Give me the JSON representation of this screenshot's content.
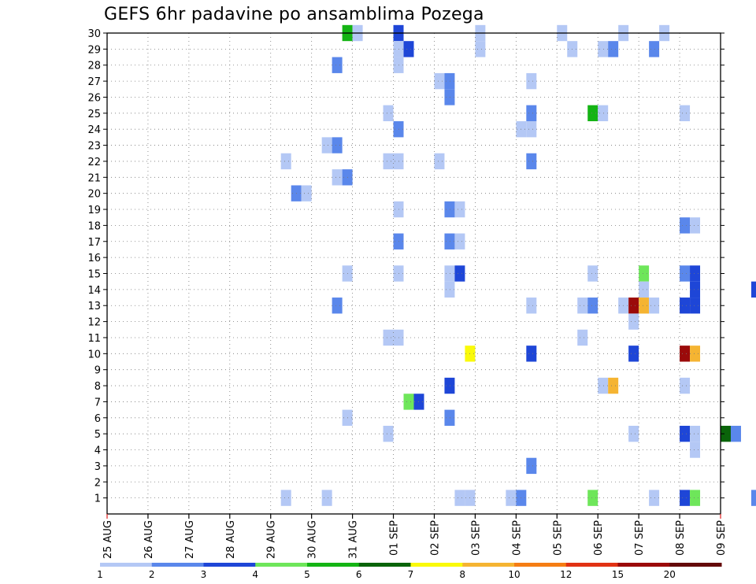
{
  "chart_data": {
    "type": "heatmap",
    "title": "GEFS 6hr padavine po ansamblima Pozega",
    "x_tick_labels": [
      "25 AUG",
      "26 AUG",
      "27 AUG",
      "28 AUG",
      "29 AUG",
      "30 AUG",
      "31 AUG",
      "01 SEP",
      "02 SEP",
      "03 SEP",
      "04 SEP",
      "05 SEP",
      "06 SEP",
      "07 SEP",
      "08 SEP",
      "09 SEP"
    ],
    "y_tick_labels": [
      "1",
      "2",
      "3",
      "4",
      "5",
      "6",
      "7",
      "8",
      "9",
      "10",
      "11",
      "12",
      "13",
      "14",
      "15",
      "16",
      "17",
      "18",
      "19",
      "20",
      "21",
      "22",
      "23",
      "24",
      "25",
      "26",
      "27",
      "28",
      "29",
      "30"
    ],
    "x_unit": "6hr step (4 per day, starting 25 AUG)",
    "ylim": [
      0,
      30
    ],
    "grid": true,
    "colorbar": {
      "levels": [
        "1",
        "2",
        "3",
        "4",
        "5",
        "6",
        "7",
        "8",
        "10",
        "12",
        "15",
        "20"
      ],
      "colors": [
        "#b4c8f5",
        "#5a87eb",
        "#1e46d7",
        "#6ee65a",
        "#14b414",
        "#0a640a",
        "#fafa0a",
        "#f5b432",
        "#f57d14",
        "#e13214",
        "#9b0a0a",
        "#640a0a"
      ]
    },
    "cells": [
      [
        30,
        23,
        4
      ],
      [
        30,
        24,
        0
      ],
      [
        30,
        28,
        2
      ],
      [
        30,
        36,
        0
      ],
      [
        30,
        44,
        0
      ],
      [
        30,
        50,
        0
      ],
      [
        30,
        54,
        0
      ],
      [
        30,
        72,
        0
      ],
      [
        29,
        28,
        0
      ],
      [
        29,
        29,
        2
      ],
      [
        29,
        36,
        0
      ],
      [
        29,
        45,
        0
      ],
      [
        29,
        48,
        0
      ],
      [
        29,
        49,
        1
      ],
      [
        29,
        53,
        1
      ],
      [
        29,
        83,
        0
      ],
      [
        28,
        22,
        1
      ],
      [
        28,
        28,
        0
      ],
      [
        28,
        78,
        0
      ],
      [
        28,
        82,
        1
      ],
      [
        28,
        83,
        0
      ],
      [
        28,
        84,
        1
      ],
      [
        28,
        85,
        5
      ],
      [
        28,
        88,
        1
      ],
      [
        27,
        32,
        0
      ],
      [
        27,
        33,
        1
      ],
      [
        27,
        41,
        0
      ],
      [
        27,
        83,
        0
      ],
      [
        27,
        88,
        0
      ],
      [
        26,
        33,
        1
      ],
      [
        25,
        27,
        0
      ],
      [
        25,
        41,
        1
      ],
      [
        25,
        47,
        4
      ],
      [
        25,
        48,
        0
      ],
      [
        25,
        56,
        0
      ],
      [
        24,
        28,
        1
      ],
      [
        24,
        40,
        0
      ],
      [
        24,
        41,
        0
      ],
      [
        23,
        21,
        0
      ],
      [
        23,
        22,
        1
      ],
      [
        22,
        17,
        0
      ],
      [
        22,
        27,
        0
      ],
      [
        22,
        28,
        0
      ],
      [
        22,
        32,
        0
      ],
      [
        22,
        41,
        1
      ],
      [
        21,
        22,
        0
      ],
      [
        21,
        23,
        1
      ],
      [
        20,
        18,
        1
      ],
      [
        20,
        19,
        0
      ],
      [
        20,
        81,
        1
      ],
      [
        20,
        82,
        0
      ],
      [
        20,
        83,
        2
      ],
      [
        20,
        87,
        1
      ],
      [
        19,
        28,
        0
      ],
      [
        19,
        33,
        1
      ],
      [
        19,
        34,
        0
      ],
      [
        19,
        76,
        1
      ],
      [
        19,
        77,
        3
      ],
      [
        19,
        81,
        1
      ],
      [
        19,
        82,
        3
      ],
      [
        18,
        56,
        1
      ],
      [
        18,
        57,
        0
      ],
      [
        17,
        28,
        1
      ],
      [
        17,
        33,
        1
      ],
      [
        17,
        34,
        0
      ],
      [
        15,
        23,
        0
      ],
      [
        15,
        28,
        0
      ],
      [
        15,
        33,
        0
      ],
      [
        15,
        34,
        2
      ],
      [
        15,
        47,
        0
      ],
      [
        15,
        52,
        3
      ],
      [
        15,
        56,
        1
      ],
      [
        15,
        57,
        2
      ],
      [
        15,
        76,
        0
      ],
      [
        15,
        78,
        1
      ],
      [
        14,
        33,
        0
      ],
      [
        14,
        52,
        0
      ],
      [
        14,
        57,
        2
      ],
      [
        14,
        63,
        2
      ],
      [
        14,
        64,
        1
      ],
      [
        14,
        65,
        0
      ],
      [
        14,
        66,
        0
      ],
      [
        14,
        81,
        1
      ],
      [
        14,
        82,
        2
      ],
      [
        14,
        83,
        1
      ],
      [
        14,
        84,
        1
      ],
      [
        14,
        85,
        1
      ],
      [
        14,
        86,
        3
      ],
      [
        14,
        87,
        7
      ],
      [
        13,
        22,
        1
      ],
      [
        13,
        41,
        0
      ],
      [
        13,
        46,
        0
      ],
      [
        13,
        47,
        1
      ],
      [
        13,
        50,
        0
      ],
      [
        13,
        51,
        10
      ],
      [
        13,
        52,
        7
      ],
      [
        13,
        53,
        0
      ],
      [
        13,
        56,
        2
      ],
      [
        13,
        57,
        2
      ],
      [
        13,
        68,
        0
      ],
      [
        13,
        69,
        0
      ],
      [
        13,
        75,
        0
      ],
      [
        13,
        76,
        1
      ],
      [
        12,
        51,
        0
      ],
      [
        11,
        27,
        0
      ],
      [
        11,
        28,
        0
      ],
      [
        11,
        46,
        0
      ],
      [
        10,
        35,
        6
      ],
      [
        10,
        41,
        2
      ],
      [
        10,
        51,
        2
      ],
      [
        10,
        56,
        10
      ],
      [
        10,
        57,
        7
      ],
      [
        10,
        69,
        0
      ],
      [
        10,
        70,
        3
      ],
      [
        10,
        74,
        0
      ],
      [
        10,
        75,
        1
      ],
      [
        10,
        76,
        2
      ],
      [
        10,
        81,
        11
      ],
      [
        10,
        82,
        3
      ],
      [
        10,
        83,
        0
      ],
      [
        10,
        87,
        6
      ],
      [
        9,
        76,
        0
      ],
      [
        9,
        83,
        0
      ],
      [
        9,
        84,
        1
      ],
      [
        8,
        33,
        2
      ],
      [
        8,
        48,
        0
      ],
      [
        8,
        49,
        7
      ],
      [
        8,
        56,
        0
      ],
      [
        7,
        29,
        3
      ],
      [
        7,
        30,
        2
      ],
      [
        6,
        23,
        0
      ],
      [
        6,
        33,
        1
      ],
      [
        5,
        27,
        0
      ],
      [
        5,
        51,
        0
      ],
      [
        5,
        56,
        2
      ],
      [
        5,
        57,
        0
      ],
      [
        5,
        60,
        5
      ],
      [
        5,
        61,
        1
      ],
      [
        5,
        69,
        0
      ],
      [
        5,
        76,
        1
      ],
      [
        5,
        77,
        1
      ],
      [
        4,
        57,
        0
      ],
      [
        4,
        77,
        0
      ],
      [
        3,
        41,
        1
      ],
      [
        2,
        66,
        2
      ],
      [
        2,
        75,
        8
      ],
      [
        2,
        76,
        0
      ],
      [
        1,
        17,
        0
      ],
      [
        1,
        21,
        0
      ],
      [
        1,
        34,
        0
      ],
      [
        1,
        35,
        0
      ],
      [
        1,
        39,
        0
      ],
      [
        1,
        40,
        1
      ],
      [
        1,
        47,
        3
      ],
      [
        1,
        53,
        0
      ],
      [
        1,
        56,
        2
      ],
      [
        1,
        57,
        3
      ],
      [
        1,
        63,
        1
      ],
      [
        1,
        67,
        0
      ]
    ]
  }
}
